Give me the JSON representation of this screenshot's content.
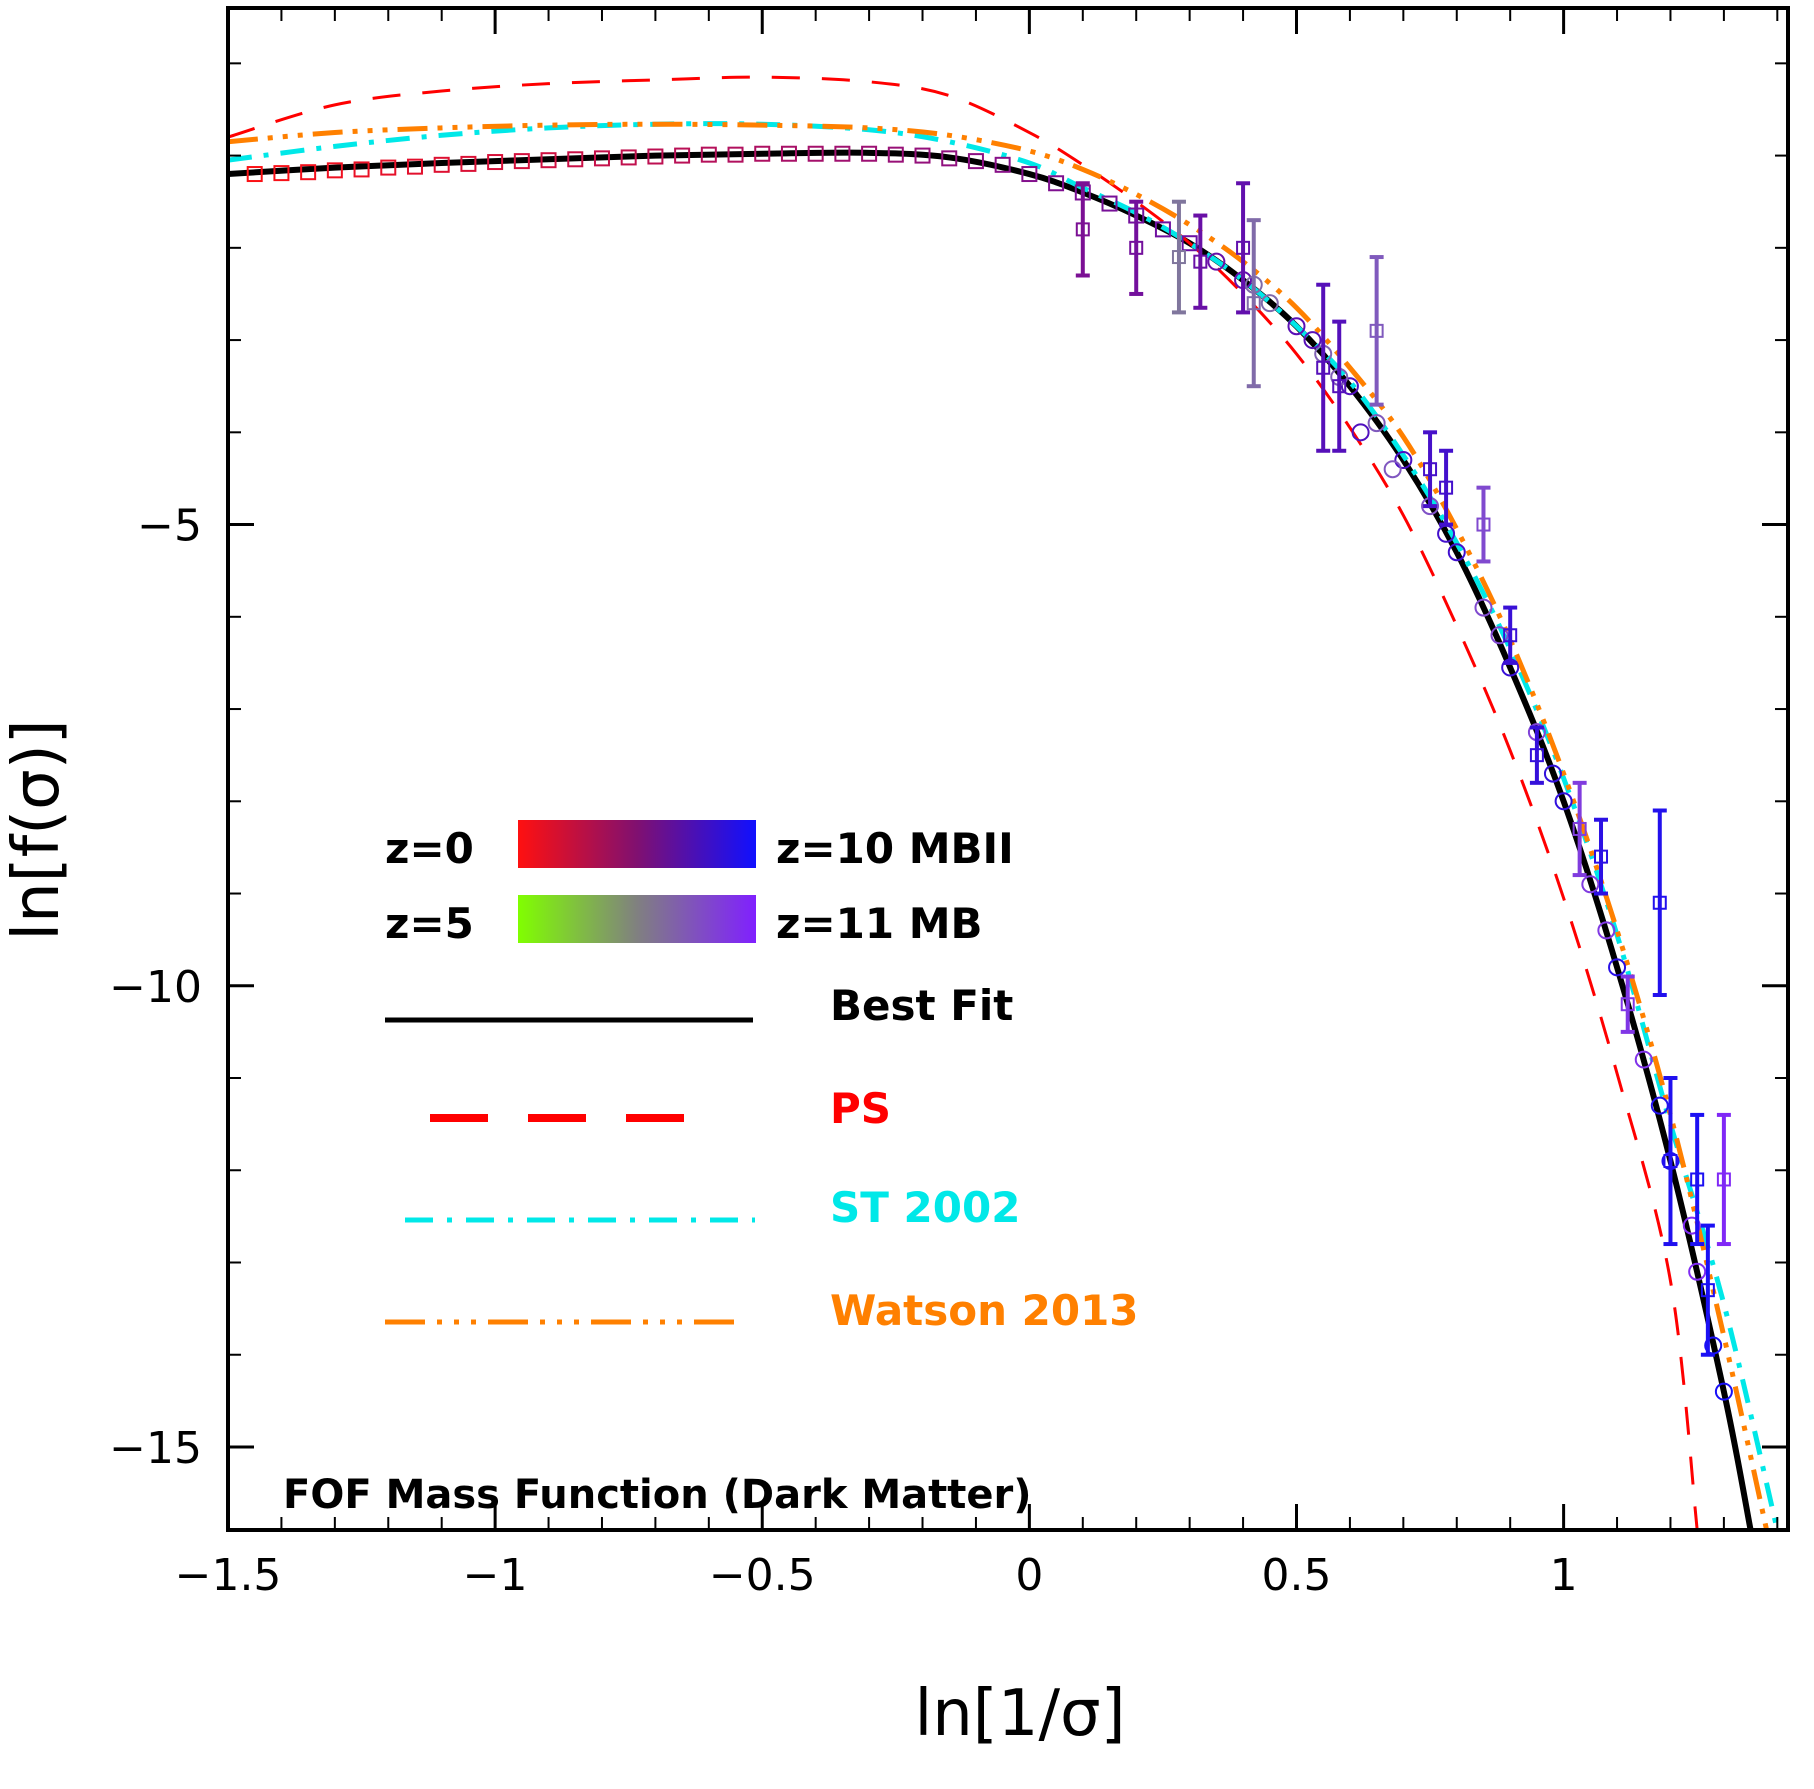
{
  "chart_data": {
    "type": "scatter",
    "xlabel": "ln[1/σ]",
    "ylabel": "ln[f(σ)]",
    "xlim": [
      -1.5,
      1.42
    ],
    "ylim": [
      -15.9,
      0.6
    ],
    "xticks": [
      -1.5,
      -1,
      -0.5,
      0,
      0.5,
      1
    ],
    "xtick_labels": [
      "−1.5",
      "−1",
      "−0.5",
      "0",
      "0.5",
      "1"
    ],
    "yticks": [
      -5,
      -10,
      -15
    ],
    "ytick_labels": [
      "−5",
      "−10",
      "−15"
    ],
    "annotation": "FOF Mass Function (Dark Matter)",
    "legend": {
      "gradient1": {
        "left": "z=0",
        "right": "z=10 MBII",
        "colors": [
          "#ff1010",
          "#1010ff"
        ]
      },
      "gradient2": {
        "left": "z=5",
        "right": "z=11 MB",
        "colors": [
          "#80ff00",
          "#8020ff"
        ]
      },
      "lines": [
        {
          "label": "Best Fit",
          "color": "#000000"
        },
        {
          "label": "PS",
          "color": "#ff0000"
        },
        {
          "label": "ST 2002",
          "color": "#00e8e8"
        },
        {
          "label": "Watson 2013",
          "color": "#ff8000"
        }
      ]
    },
    "series": [
      {
        "name": "Best Fit",
        "color": "#000000",
        "x": [
          -1.5,
          -1.3,
          -1.1,
          -0.9,
          -0.7,
          -0.5,
          -0.3,
          -0.15,
          0,
          0.1,
          0.2,
          0.3,
          0.4,
          0.5,
          0.6,
          0.7,
          0.8,
          0.9,
          1.0,
          1.1,
          1.2,
          1.3,
          1.35
        ],
        "y": [
          -1.2,
          -1.13,
          -1.08,
          -1.04,
          -1.0,
          -0.98,
          -0.97,
          -1.02,
          -1.2,
          -1.4,
          -1.65,
          -1.95,
          -2.35,
          -2.85,
          -3.5,
          -4.3,
          -5.3,
          -6.55,
          -8.0,
          -9.8,
          -11.9,
          -14.4,
          -15.9
        ]
      },
      {
        "name": "PS",
        "color": "#ff0000",
        "x": [
          -1.5,
          -1.3,
          -1.1,
          -0.9,
          -0.7,
          -0.5,
          -0.3,
          -0.15,
          0,
          0.1,
          0.2,
          0.3,
          0.4,
          0.5,
          0.6,
          0.7,
          0.8,
          0.9,
          1.0,
          1.1,
          1.2,
          1.25
        ],
        "y": [
          -0.8,
          -0.45,
          -0.3,
          -0.22,
          -0.18,
          -0.15,
          -0.2,
          -0.35,
          -0.75,
          -1.1,
          -1.5,
          -1.95,
          -2.5,
          -3.15,
          -3.95,
          -4.9,
          -6.1,
          -7.45,
          -9.05,
          -10.95,
          -13.2,
          -15.9
        ]
      },
      {
        "name": "ST 2002",
        "color": "#00e8e8",
        "x": [
          -1.5,
          -1.3,
          -1.1,
          -0.9,
          -0.7,
          -0.5,
          -0.3,
          -0.15,
          0,
          0.1,
          0.2,
          0.3,
          0.4,
          0.5,
          0.6,
          0.7,
          0.8,
          0.9,
          1.0,
          1.1,
          1.2,
          1.3,
          1.4
        ],
        "y": [
          -1.05,
          -0.9,
          -0.78,
          -0.7,
          -0.66,
          -0.66,
          -0.72,
          -0.85,
          -1.08,
          -1.35,
          -1.62,
          -1.95,
          -2.35,
          -2.85,
          -3.45,
          -4.25,
          -5.2,
          -6.35,
          -7.75,
          -9.45,
          -11.5,
          -13.45,
          -15.9
        ]
      },
      {
        "name": "Watson 2013",
        "color": "#ff8000",
        "x": [
          -1.5,
          -1.3,
          -1.1,
          -0.9,
          -0.7,
          -0.5,
          -0.3,
          -0.15,
          0,
          0.1,
          0.2,
          0.3,
          0.4,
          0.5,
          0.6,
          0.7,
          0.8,
          0.9,
          1.0,
          1.1,
          1.2,
          1.3,
          1.38
        ],
        "y": [
          -0.85,
          -0.75,
          -0.7,
          -0.67,
          -0.66,
          -0.67,
          -0.7,
          -0.78,
          -0.95,
          -1.15,
          -1.42,
          -1.75,
          -2.15,
          -2.65,
          -3.3,
          -4.05,
          -5.05,
          -6.25,
          -7.7,
          -9.4,
          -11.4,
          -13.8,
          -15.9
        ]
      }
    ],
    "scatter_points": [
      {
        "x": -1.45,
        "y": -1.2
      },
      {
        "x": -1.4,
        "y": -1.19
      },
      {
        "x": -1.35,
        "y": -1.18
      },
      {
        "x": -1.3,
        "y": -1.16
      },
      {
        "x": -1.25,
        "y": -1.15
      },
      {
        "x": -1.2,
        "y": -1.13
      },
      {
        "x": -1.15,
        "y": -1.12
      },
      {
        "x": -1.1,
        "y": -1.1
      },
      {
        "x": -1.05,
        "y": -1.09
      },
      {
        "x": -1.0,
        "y": -1.07
      },
      {
        "x": -0.95,
        "y": -1.06
      },
      {
        "x": -0.9,
        "y": -1.05
      },
      {
        "x": -0.85,
        "y": -1.04
      },
      {
        "x": -0.8,
        "y": -1.03
      },
      {
        "x": -0.75,
        "y": -1.02
      },
      {
        "x": -0.7,
        "y": -1.01
      },
      {
        "x": -0.65,
        "y": -1.0
      },
      {
        "x": -0.6,
        "y": -0.99
      },
      {
        "x": -0.55,
        "y": -0.99
      },
      {
        "x": -0.5,
        "y": -0.98
      },
      {
        "x": -0.45,
        "y": -0.98
      },
      {
        "x": -0.4,
        "y": -0.98
      },
      {
        "x": -0.35,
        "y": -0.98
      },
      {
        "x": -0.3,
        "y": -0.98
      },
      {
        "x": -0.25,
        "y": -0.99
      },
      {
        "x": -0.2,
        "y": -1.0
      },
      {
        "x": -0.15,
        "y": -1.03
      },
      {
        "x": -0.1,
        "y": -1.06
      },
      {
        "x": -0.05,
        "y": -1.1
      },
      {
        "x": 0.0,
        "y": -1.2
      },
      {
        "x": 0.05,
        "y": -1.3
      },
      {
        "x": 0.1,
        "y": -1.4
      },
      {
        "x": 0.15,
        "y": -1.52
      },
      {
        "x": 0.2,
        "y": -1.65
      },
      {
        "x": 0.25,
        "y": -1.8
      },
      {
        "x": 0.3,
        "y": -1.95
      },
      {
        "x": 0.35,
        "y": -2.15
      },
      {
        "x": 0.4,
        "y": -2.35
      },
      {
        "x": 0.45,
        "y": -2.6
      },
      {
        "x": 0.5,
        "y": -2.85
      },
      {
        "x": 0.55,
        "y": -3.15
      },
      {
        "x": 0.6,
        "y": -3.5
      },
      {
        "x": 0.65,
        "y": -3.9
      },
      {
        "x": 0.7,
        "y": -4.3
      },
      {
        "x": 0.75,
        "y": -4.8
      },
      {
        "x": 0.8,
        "y": -5.3
      },
      {
        "x": 0.85,
        "y": -5.9
      },
      {
        "x": 0.9,
        "y": -6.55
      },
      {
        "x": 0.95,
        "y": -7.25
      },
      {
        "x": 1.0,
        "y": -8.0
      },
      {
        "x": 1.05,
        "y": -8.9
      },
      {
        "x": 1.1,
        "y": -9.8
      },
      {
        "x": 1.15,
        "y": -10.8
      },
      {
        "x": 1.2,
        "y": -11.9
      },
      {
        "x": 1.25,
        "y": -13.1
      },
      {
        "x": 1.3,
        "y": -14.4
      },
      {
        "x": 0.42,
        "y": -2.4
      },
      {
        "x": 0.53,
        "y": -3.0
      },
      {
        "x": 0.58,
        "y": -3.4
      },
      {
        "x": 0.62,
        "y": -4.0
      },
      {
        "x": 0.68,
        "y": -4.4
      },
      {
        "x": 0.78,
        "y": -5.1
      },
      {
        "x": 0.88,
        "y": -6.2
      },
      {
        "x": 0.98,
        "y": -7.7
      },
      {
        "x": 1.08,
        "y": -9.4
      },
      {
        "x": 1.18,
        "y": -11.3
      },
      {
        "x": 1.24,
        "y": -12.6
      },
      {
        "x": 1.28,
        "y": -13.9
      }
    ],
    "error_points": [
      {
        "x": 0.1,
        "y": -1.8,
        "err": 0.5
      },
      {
        "x": 0.2,
        "y": -2.0,
        "err": 0.5
      },
      {
        "x": 0.28,
        "y": -2.1,
        "err": 0.6
      },
      {
        "x": 0.32,
        "y": -2.15,
        "err": 0.5
      },
      {
        "x": 0.4,
        "y": -2.0,
        "err": 0.7
      },
      {
        "x": 0.42,
        "y": -2.6,
        "err": 0.9
      },
      {
        "x": 0.55,
        "y": -3.3,
        "err": 0.9
      },
      {
        "x": 0.58,
        "y": -3.5,
        "err": 0.7
      },
      {
        "x": 0.65,
        "y": -2.9,
        "err": 0.8
      },
      {
        "x": 0.75,
        "y": -4.4,
        "err": 0.4
      },
      {
        "x": 0.78,
        "y": -4.6,
        "err": 0.4
      },
      {
        "x": 0.85,
        "y": -5.0,
        "err": 0.4
      },
      {
        "x": 0.9,
        "y": -6.2,
        "err": 0.3
      },
      {
        "x": 0.95,
        "y": -7.5,
        "err": 0.3
      },
      {
        "x": 1.03,
        "y": -8.3,
        "err": 0.5
      },
      {
        "x": 1.07,
        "y": -8.6,
        "err": 0.4
      },
      {
        "x": 1.18,
        "y": -9.1,
        "err": 1.0
      },
      {
        "x": 1.12,
        "y": -10.2,
        "err": 0.3
      },
      {
        "x": 1.2,
        "y": -11.9,
        "err": 0.9
      },
      {
        "x": 1.25,
        "y": -12.1,
        "err": 0.7
      },
      {
        "x": 1.3,
        "y": -12.1,
        "err": 0.7
      },
      {
        "x": 1.27,
        "y": -13.3,
        "err": 0.7
      }
    ]
  }
}
